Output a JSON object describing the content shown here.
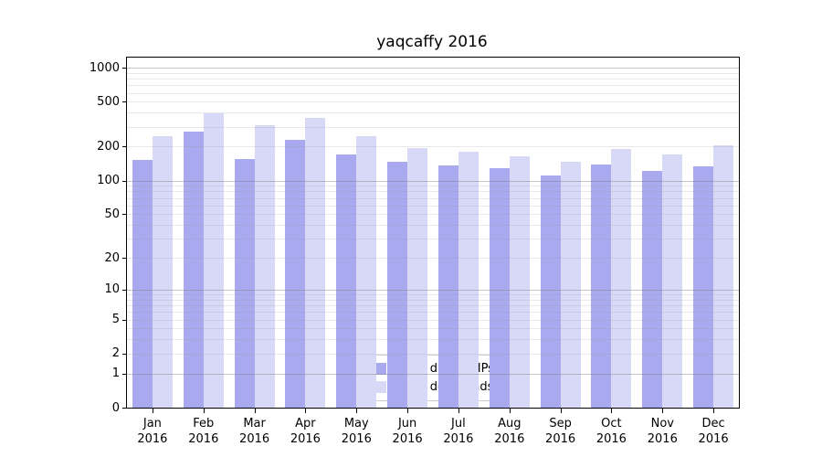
{
  "chart_data": {
    "type": "bar",
    "title": "yaqcaffy 2016",
    "categories": [
      "Jan",
      "Feb",
      "Mar",
      "Apr",
      "May",
      "Jun",
      "Jul",
      "Aug",
      "Sep",
      "Oct",
      "Nov",
      "Dec"
    ],
    "year_label": "2016",
    "series": [
      {
        "name": "Nb of distinct IPs",
        "color": "#a9a9f0",
        "values": [
          152,
          270,
          156,
          230,
          170,
          148,
          136,
          130,
          110,
          140,
          121,
          135
        ]
      },
      {
        "name": "Nb of downloads",
        "color": "#d8d8f7",
        "values": [
          250,
          395,
          310,
          362,
          246,
          195,
          181,
          165,
          147,
          190,
          171,
          205
        ]
      }
    ],
    "yscale": "log1p",
    "yticks": [
      0,
      1,
      2,
      5,
      10,
      20,
      50,
      100,
      200,
      500,
      1000
    ],
    "ylim": [
      0,
      1232
    ],
    "grid": {
      "major_ticks": [
        1,
        10,
        100,
        1000
      ],
      "minor_steps": [
        2,
        3,
        4,
        5,
        6,
        7,
        8,
        9
      ]
    },
    "legend_position": "lower center",
    "axis_color": "#000000",
    "grid_major_color": "#808080",
    "grid_minor_color": "#999999"
  }
}
